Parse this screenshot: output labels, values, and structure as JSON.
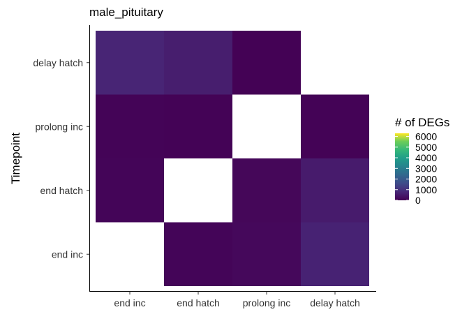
{
  "chart_data": {
    "type": "heatmap",
    "title": "male_pituitary",
    "xlabel": "",
    "ylabel": "Timepoint",
    "x_categories": [
      "end inc",
      "end hatch",
      "prolong inc",
      "delay hatch"
    ],
    "y_categories": [
      "end inc",
      "end hatch",
      "prolong inc",
      "delay hatch"
    ],
    "cells": [
      {
        "x": "end hatch",
        "y": "end inc",
        "value": 90
      },
      {
        "x": "prolong inc",
        "y": "end inc",
        "value": 150
      },
      {
        "x": "delay hatch",
        "y": "end inc",
        "value": 700
      },
      {
        "x": "end inc",
        "y": "end hatch",
        "value": 80
      },
      {
        "x": "prolong inc",
        "y": "end hatch",
        "value": 120
      },
      {
        "x": "delay hatch",
        "y": "end hatch",
        "value": 550
      },
      {
        "x": "end inc",
        "y": "prolong inc",
        "value": 60
      },
      {
        "x": "end hatch",
        "y": "prolong inc",
        "value": 50
      },
      {
        "x": "delay hatch",
        "y": "prolong inc",
        "value": 40
      },
      {
        "x": "end inc",
        "y": "delay hatch",
        "value": 750
      },
      {
        "x": "end hatch",
        "y": "delay hatch",
        "value": 600
      },
      {
        "x": "prolong inc",
        "y": "delay hatch",
        "value": 20
      }
    ],
    "legend": {
      "title": "# of DEGs",
      "ticks": [
        0,
        1000,
        2000,
        3000,
        4000,
        5000,
        6000
      ],
      "range": [
        0,
        6300
      ],
      "placement": "right"
    },
    "colorscale": "viridis",
    "grid": false
  }
}
